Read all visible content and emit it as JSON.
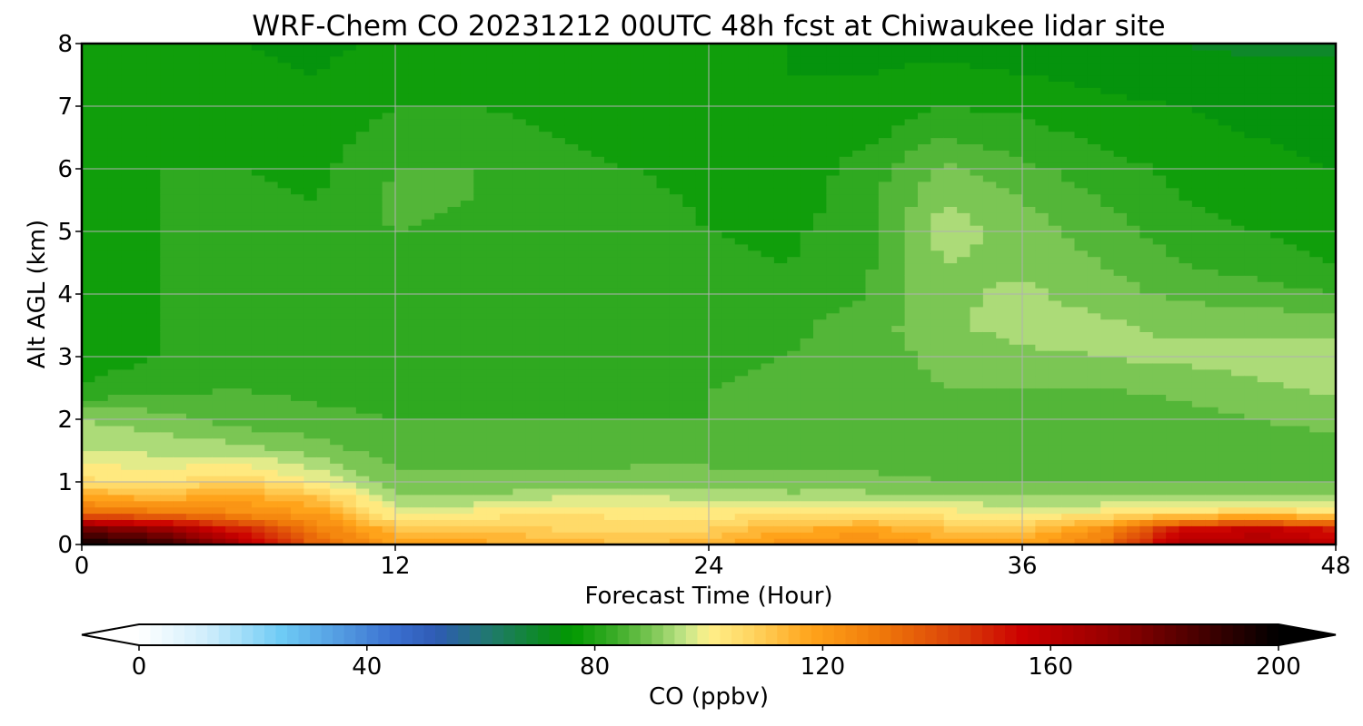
{
  "chart_data": {
    "type": "heatmap",
    "title": "WRF-Chem CO  20231212 00UTC 48h fcst at Chiwaukee lidar site",
    "xlabel": "Forecast Time (Hour)",
    "ylabel": "Alt AGL (km)",
    "xlim": [
      0,
      48
    ],
    "ylim": [
      0,
      8
    ],
    "x_ticks": [
      0,
      12,
      24,
      36,
      48
    ],
    "y_ticks": [
      0,
      1,
      2,
      3,
      4,
      5,
      6,
      7,
      8
    ],
    "grid": true,
    "x": [
      0,
      3,
      6,
      9,
      12,
      15,
      18,
      21,
      24,
      27,
      30,
      33,
      36,
      39,
      42,
      45,
      48
    ],
    "y": [
      0,
      0.25,
      0.5,
      0.75,
      1,
      1.5,
      2,
      2.5,
      3,
      3.5,
      4,
      4.5,
      5,
      5.5,
      6,
      6.5,
      7,
      7.5,
      8
    ],
    "z": [
      [
        200,
        190,
        165,
        135,
        120,
        118,
        116,
        112,
        115,
        122,
        125,
        120,
        118,
        130,
        162,
        165,
        160
      ],
      [
        178,
        170,
        150,
        128,
        112,
        110,
        108,
        106,
        108,
        115,
        118,
        112,
        110,
        122,
        152,
        158,
        150
      ],
      [
        135,
        130,
        125,
        120,
        100,
        102,
        104,
        103,
        102,
        104,
        104,
        102,
        100,
        102,
        105,
        108,
        105
      ],
      [
        118,
        115,
        118,
        112,
        93,
        92,
        96,
        97,
        95,
        94,
        94,
        93,
        92,
        92,
        93,
        94,
        93
      ],
      [
        105,
        104,
        108,
        100,
        89,
        89,
        89,
        90,
        90,
        89,
        89,
        88,
        88,
        87,
        87,
        88,
        88
      ],
      [
        96,
        95,
        94,
        90,
        86,
        86,
        86,
        86,
        86,
        86,
        86,
        86,
        85,
        85,
        85,
        86,
        87
      ],
      [
        92,
        90,
        86,
        85,
        84,
        84,
        84,
        84,
        84,
        85,
        86,
        87,
        86,
        85,
        86,
        88,
        89
      ],
      [
        80,
        83,
        84,
        83,
        83,
        83,
        82,
        83,
        84,
        85,
        86,
        88,
        88,
        88,
        89,
        91,
        93
      ],
      [
        78,
        80,
        82,
        82,
        82,
        81,
        80,
        81,
        83,
        84,
        86,
        89,
        91,
        92,
        93,
        94,
        95
      ],
      [
        78,
        80,
        82,
        82,
        82,
        82,
        81,
        82,
        83,
        83,
        86,
        91,
        94,
        93,
        91,
        91,
        90
      ],
      [
        78,
        80,
        82,
        82,
        82,
        82,
        82,
        82,
        82,
        81,
        84,
        91,
        93,
        90,
        87,
        86,
        84
      ],
      [
        78,
        80,
        82,
        82,
        83,
        82,
        82,
        82,
        81,
        80,
        83,
        92,
        91,
        88,
        84,
        82,
        80
      ],
      [
        79,
        80,
        82,
        81,
        84,
        83,
        82,
        83,
        80,
        79,
        83,
        94,
        90,
        86,
        82,
        80,
        78
      ],
      [
        79,
        80,
        81,
        80,
        85,
        84,
        82,
        82,
        79,
        78,
        82,
        92,
        88,
        84,
        80,
        78,
        77
      ],
      [
        79,
        80,
        80,
        79,
        84,
        84,
        81,
        80,
        78,
        77,
        82,
        89,
        85,
        82,
        79,
        77,
        76
      ],
      [
        78,
        79,
        79,
        78,
        82,
        82,
        80,
        79,
        77,
        76,
        79,
        84,
        82,
        79,
        77,
        76,
        75
      ],
      [
        78,
        78,
        78,
        77,
        80,
        80,
        79,
        78,
        77,
        76,
        77,
        80,
        79,
        77,
        76,
        75,
        74
      ],
      [
        78,
        78,
        77,
        76,
        78,
        78,
        77,
        77,
        77,
        76,
        76,
        77,
        76,
        75,
        74,
        73,
        73
      ],
      [
        77,
        77,
        76,
        75,
        77,
        77,
        76,
        76,
        76,
        76,
        75,
        75,
        74,
        73,
        72,
        71,
        71
      ]
    ],
    "colorbar": {
      "label": "CO  (ppbv)",
      "min": 0,
      "max": 200,
      "ticks": [
        0,
        40,
        80,
        120,
        160,
        200
      ],
      "extend": "both",
      "stops": [
        {
          "value": 0,
          "color": "#ffffff"
        },
        {
          "value": 12,
          "color": "#cfeefc"
        },
        {
          "value": 25,
          "color": "#6ecbf5"
        },
        {
          "value": 45,
          "color": "#3a6fcf"
        },
        {
          "value": 52,
          "color": "#2f5bb5"
        },
        {
          "value": 62,
          "color": "#1f7a6a"
        },
        {
          "value": 72,
          "color": "#0a8c1a"
        },
        {
          "value": 76,
          "color": "#009900"
        },
        {
          "value": 84,
          "color": "#3fae2a"
        },
        {
          "value": 90,
          "color": "#7bc654"
        },
        {
          "value": 96,
          "color": "#c5e68a"
        },
        {
          "value": 100,
          "color": "#fff08a"
        },
        {
          "value": 108,
          "color": "#ffd35e"
        },
        {
          "value": 118,
          "color": "#ffa31a"
        },
        {
          "value": 130,
          "color": "#f07a0a"
        },
        {
          "value": 145,
          "color": "#d83a08"
        },
        {
          "value": 155,
          "color": "#cc0000"
        },
        {
          "value": 170,
          "color": "#990000"
        },
        {
          "value": 185,
          "color": "#4d0000"
        },
        {
          "value": 200,
          "color": "#000000"
        }
      ]
    }
  }
}
